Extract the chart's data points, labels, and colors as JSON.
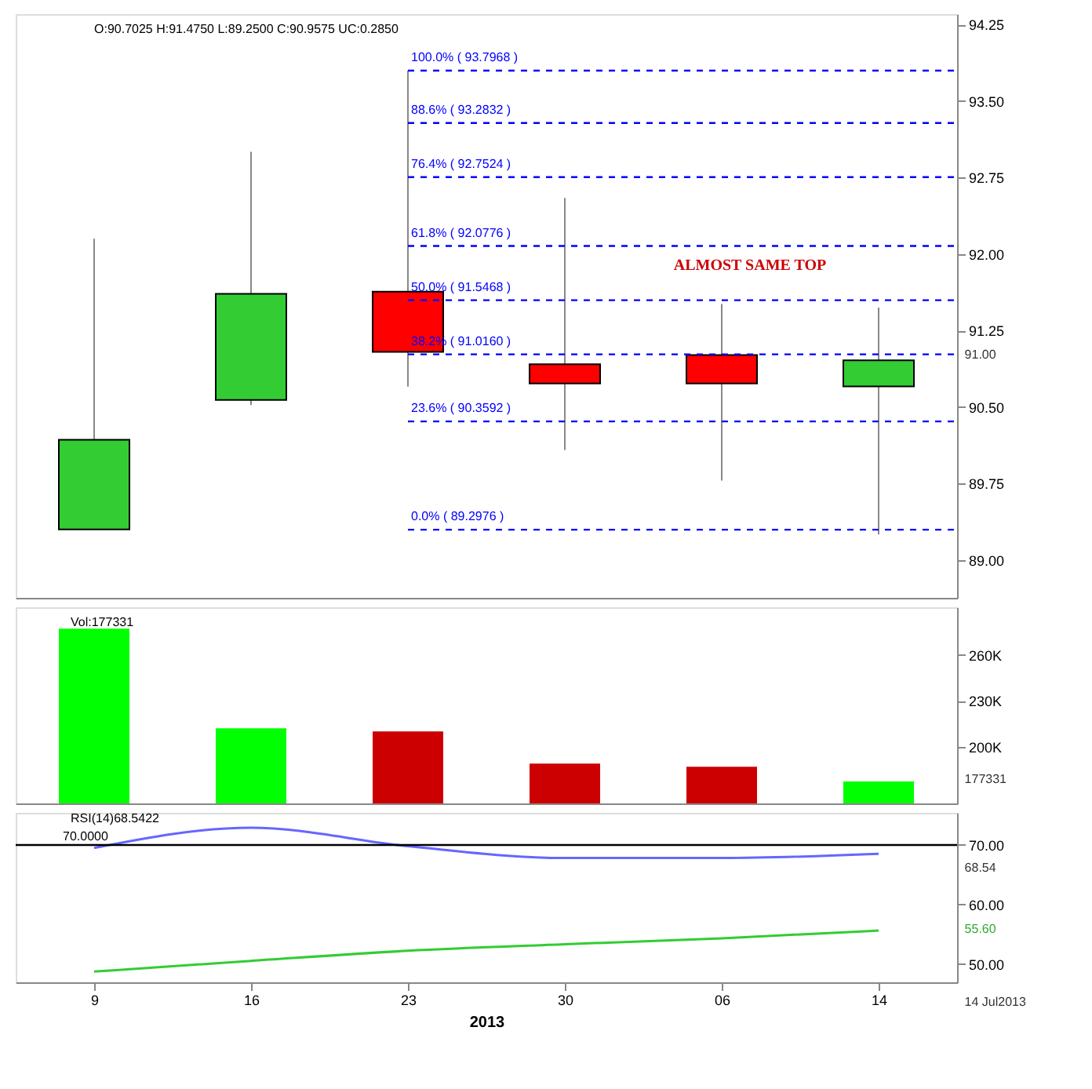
{
  "chart_data": [
    {
      "type": "candlestick",
      "categories": [
        "9",
        "16",
        "23",
        "30",
        "06",
        "14"
      ],
      "ohlc": [
        [
          89.3,
          92.15,
          89.2976,
          90.18
        ],
        [
          90.57,
          93.0,
          90.52,
          91.61
        ],
        [
          91.63,
          93.7968,
          90.7,
          91.04
        ],
        [
          90.92,
          92.55,
          90.08,
          90.73
        ],
        [
          91.01,
          91.51,
          89.78,
          90.73
        ],
        [
          90.7025,
          91.475,
          89.25,
          90.9575
        ]
      ],
      "colors": [
        "#33cc33",
        "#33cc33",
        "#ff0000",
        "#ff0000",
        "#ff0000",
        "#33cc33"
      ],
      "ylim": [
        88.63,
        94.35
      ],
      "yticks": [
        {
          "value": 89.0,
          "label": "89.00"
        },
        89.75,
        {
          "value": 90.5,
          "label": "90.50"
        },
        91.25,
        {
          "value": 92.0,
          "label": "92.00"
        },
        92.75,
        {
          "value": 93.5,
          "label": "93.50"
        },
        94.25
      ],
      "ref_lines": [
        {
          "axis": "y",
          "value": 93.7968,
          "label": "100.0% ( 93.7968 )",
          "color": "#0000ff",
          "line_style": "dashed"
        },
        {
          "axis": "y",
          "value": 93.2832,
          "label": "88.6% ( 93.2832 )",
          "color": "#0000ff",
          "line_style": "dashed"
        },
        {
          "axis": "y",
          "value": 92.7524,
          "label": "76.4% ( 92.7524 )",
          "color": "#0000ff",
          "line_style": "dashed"
        },
        {
          "axis": "y",
          "value": 92.0776,
          "label": "61.8% ( 92.0776 )",
          "color": "#0000ff",
          "line_style": "dashed"
        },
        {
          "axis": "y",
          "value": 91.5468,
          "label": "50.0% ( 91.5468 )",
          "color": "#0000ff",
          "line_style": "dashed"
        },
        {
          "axis": "y",
          "value": 91.016,
          "label": "38.2% ( 91.0160 )",
          "color": "#0000ff",
          "line_style": "dashed"
        },
        {
          "axis": "y",
          "value": 90.3592,
          "label": "23.6% ( 90.3592 )",
          "color": "#0000ff",
          "line_style": "dashed"
        },
        {
          "axis": "y",
          "value": 89.2976,
          "label": "0.0% ( 89.2976 )",
          "color": "#0000ff",
          "line_style": "dashed"
        }
      ],
      "annotations": [
        "O:90.7025 H:91.4750 L:89.2500 C:90.9575 UC:0.2850",
        "ALMOST SAME TOP",
        "91.00"
      ],
      "tick_labels": "y",
      "grid": false
    },
    {
      "type": "bar",
      "categories": [
        "9",
        "16",
        "23",
        "30",
        "06",
        "14"
      ],
      "values": [
        277000,
        212000,
        210000,
        189000,
        187000,
        177331
      ],
      "colors": [
        "#00ff00",
        "#00ff00",
        "#cc0000",
        "#cc0000",
        "#cc0000",
        "#00ff00"
      ],
      "ylim": [
        163000,
        291000
      ],
      "yticks": [
        {
          "value": 200000,
          "label": "200K"
        },
        {
          "value": 230000,
          "label": "230K"
        },
        {
          "value": 260000,
          "label": "260K"
        }
      ],
      "annotations": [
        "Vol:177331",
        "177331"
      ],
      "tick_labels": "y",
      "grid": false
    },
    {
      "type": "line",
      "categories": [
        "9",
        "16",
        "23",
        "30",
        "06",
        "14"
      ],
      "xlabel": "2013",
      "series": [
        {
          "color": "#6666ff",
          "values": [
            69.5,
            72.9,
            69.8,
            67.8,
            67.8,
            68.5
          ]
        },
        {
          "color": "#33cc33",
          "values": [
            48.7,
            50.5,
            52.2,
            53.3,
            54.3,
            55.6
          ]
        }
      ],
      "ylim": [
        46.9,
        75.4
      ],
      "yticks": [
        {
          "value": 50,
          "label": "50.00"
        },
        {
          "value": 60,
          "label": "60.00"
        },
        {
          "value": 70,
          "label": "70.00"
        }
      ],
      "ref_lines": [
        {
          "axis": "y",
          "value": 70,
          "label": "70.0000",
          "color": "#000000",
          "line_style": "solid"
        }
      ],
      "annotations": [
        "RSI(14)68.5422",
        "68.54",
        "55.60",
        "14 Jul2013"
      ],
      "grid": false
    }
  ]
}
